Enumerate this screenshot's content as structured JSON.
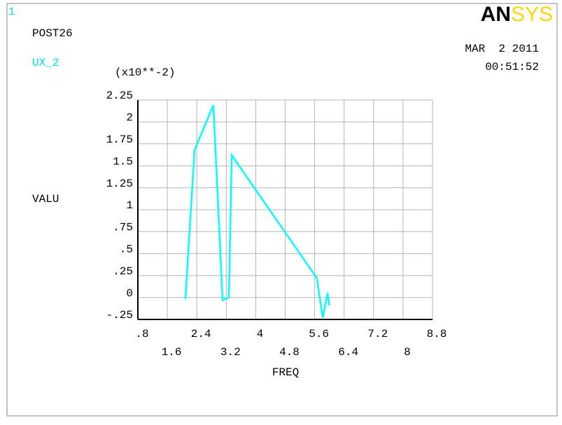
{
  "chart_data": {
    "type": "line",
    "window_number": "1",
    "program": "POST26",
    "logo": [
      "AN",
      "SYS"
    ],
    "date": "MAR  2 2011",
    "time": "00:51:52",
    "y_multiplier": "(x10**-2)",
    "xlabel": "FREQ",
    "ylabel": "VALU",
    "x": [
      2.09,
      2.34,
      2.85,
      3.1,
      3.27,
      3.35,
      5.66,
      5.82,
      5.95,
      6.0
    ],
    "series": [
      {
        "name": "UX_2",
        "color": "#00ffff",
        "values": [
          -0.02,
          1.68,
          2.19,
          -0.03,
          0.0,
          1.62,
          0.22,
          -0.23,
          0.05,
          -0.09
        ]
      }
    ],
    "xlim": [
      0.8,
      8.8
    ],
    "xticks": [
      {
        "value": 0.8,
        "label": ".8"
      },
      1.6,
      2.4,
      3.2,
      4,
      4.8,
      5.6,
      6.4,
      7.2,
      8,
      8.8
    ],
    "ylim": [
      -0.25,
      2.25
    ],
    "yticks": [
      2.25,
      2,
      1.75,
      1.5,
      1.25,
      1,
      {
        "value": 0.75,
        "label": ".75"
      },
      {
        "value": 0.5,
        "label": ".5"
      },
      {
        "value": 0.25,
        "label": ".25"
      },
      0,
      {
        "value": -0.25,
        "label": "-.25"
      }
    ],
    "grid": true
  }
}
